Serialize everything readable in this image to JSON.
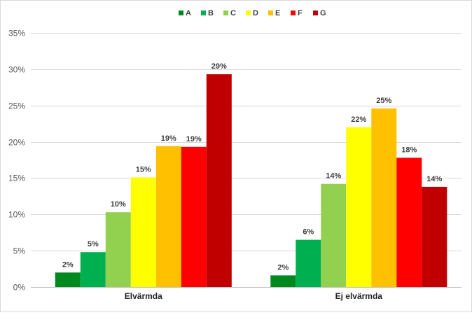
{
  "chart_data": {
    "type": "bar",
    "title": "",
    "xlabel": "",
    "ylabel": "",
    "ylim": [
      0,
      35
    ],
    "y_ticks": [
      0,
      5,
      10,
      15,
      20,
      25,
      30,
      35
    ],
    "y_tick_labels": [
      "0%",
      "5%",
      "10%",
      "15%",
      "20%",
      "25%",
      "30%",
      "35%"
    ],
    "grid": true,
    "legend_position": "top-center",
    "categories": [
      "Elvärmda",
      "Ej elvärmda"
    ],
    "series": [
      {
        "name": "A",
        "color": "#008a1e",
        "values": [
          2.0,
          1.6
        ],
        "labels": [
          "2%",
          "2%"
        ]
      },
      {
        "name": "B",
        "color": "#00b050",
        "values": [
          4.8,
          6.5
        ],
        "labels": [
          "5%",
          "6%"
        ]
      },
      {
        "name": "C",
        "color": "#92d050",
        "values": [
          10.3,
          14.2
        ],
        "labels": [
          "10%",
          "14%"
        ]
      },
      {
        "name": "D",
        "color": "#ffff00",
        "values": [
          15.1,
          22.0
        ],
        "labels": [
          "15%",
          "22%"
        ]
      },
      {
        "name": "E",
        "color": "#ffc000",
        "values": [
          19.4,
          24.6
        ],
        "labels": [
          "19%",
          "25%"
        ]
      },
      {
        "name": "F",
        "color": "#ff0000",
        "values": [
          19.3,
          17.8
        ],
        "labels": [
          "19%",
          "18%"
        ]
      },
      {
        "name": "G",
        "color": "#c00000",
        "values": [
          29.3,
          13.8
        ],
        "labels": [
          "29%",
          "14%"
        ]
      }
    ],
    "colors": {
      "gridline": "#d9d9d9",
      "axis": "#bfbfbf"
    }
  }
}
